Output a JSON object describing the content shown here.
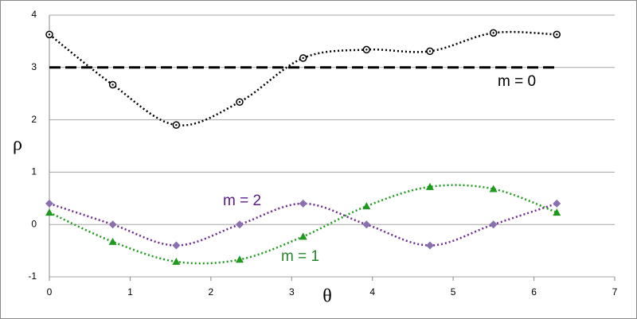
{
  "chart_data": {
    "type": "line",
    "x_label": "θ",
    "y_label": "ρ",
    "xlim": [
      0,
      7
    ],
    "xticks": [
      0,
      1,
      2,
      3,
      4,
      5,
      6,
      7
    ],
    "ylim": [
      -1,
      4
    ],
    "yticks": [
      -1,
      0,
      1,
      2,
      3,
      4
    ],
    "grid": true,
    "series": [
      {
        "color": "#000000",
        "style": "dotted",
        "marker": "circle",
        "smooth": true,
        "x": [
          0,
          0.785,
          1.571,
          2.356,
          3.142,
          3.927,
          4.712,
          5.498,
          6.283
        ],
        "values": [
          3.63,
          2.67,
          1.9,
          2.34,
          3.18,
          3.34,
          3.31,
          3.66,
          3.63
        ]
      },
      {
        "color": "#000000",
        "style": "dashed",
        "marker": "none",
        "smooth": false,
        "x": [
          0,
          6.283
        ],
        "values": [
          3,
          3
        ]
      },
      {
        "color": "#6a2a8e",
        "style": "dotted",
        "marker": "diamond",
        "smooth": true,
        "x": [
          0,
          0.785,
          1.571,
          2.356,
          3.142,
          3.927,
          4.712,
          5.498,
          6.283
        ],
        "values": [
          0.4,
          0,
          -0.4,
          0,
          0.4,
          0,
          -0.4,
          0,
          0.4
        ]
      },
      {
        "color": "#1f9a1f",
        "style": "dotted",
        "marker": "triangle",
        "smooth": true,
        "x": [
          0,
          0.785,
          1.571,
          2.356,
          3.142,
          3.927,
          4.712,
          5.498,
          6.283
        ],
        "values": [
          0.23,
          -0.33,
          -0.71,
          -0.67,
          -0.23,
          0.35,
          0.72,
          0.68,
          0.23
        ]
      }
    ],
    "annotations": [
      {
        "text": "m = 0",
        "color": "#000000"
      },
      {
        "text": "m = 2",
        "color": "#5b1a8b"
      },
      {
        "text": "m = 1",
        "color": "#23882a"
      }
    ]
  }
}
